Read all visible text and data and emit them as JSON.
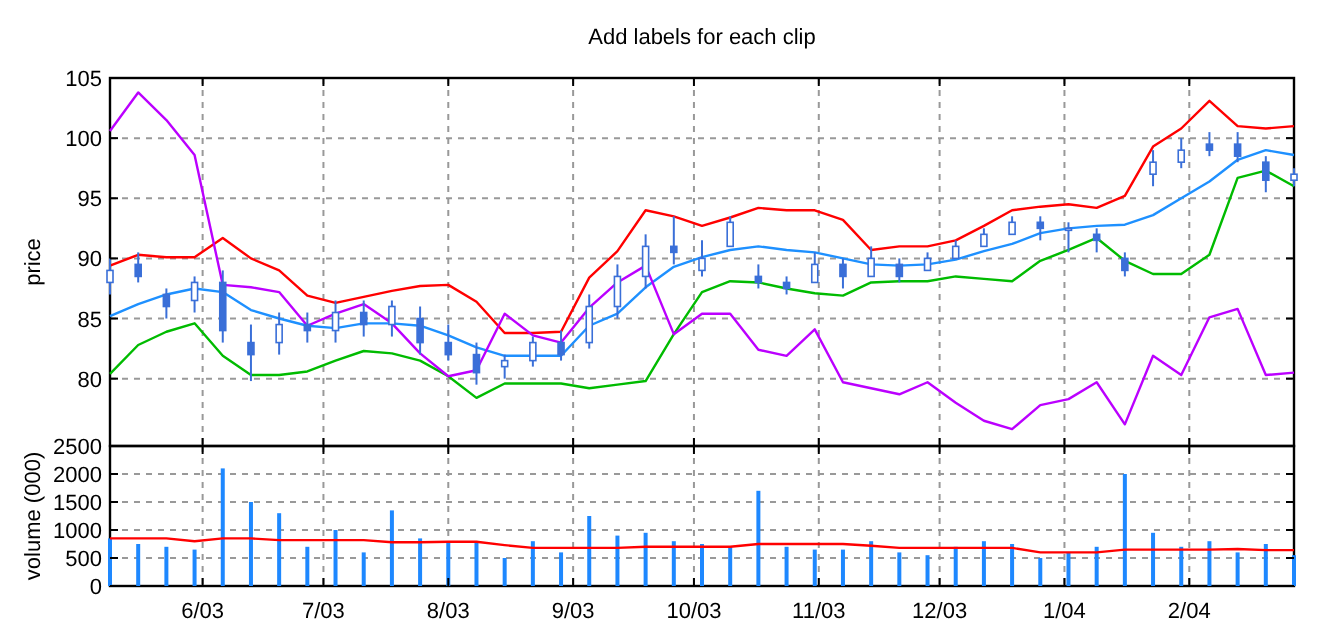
{
  "chart_data": [
    {
      "type": "candlestick",
      "title": "Add labels for each clip",
      "ylabel": "price",
      "color": "#3a6fd8",
      "x": [
        "2003-05-09",
        "2003-05-16",
        "2003-05-23",
        "2003-05-30",
        "2003-06-06",
        "2003-06-13",
        "2003-06-20",
        "2003-06-27",
        "2003-07-04",
        "2003-07-11",
        "2003-07-18",
        "2003-07-25",
        "2003-08-01",
        "2003-08-08",
        "2003-08-15",
        "2003-08-22",
        "2003-08-29",
        "2003-09-05",
        "2003-09-12",
        "2003-09-19",
        "2003-09-26",
        "2003-10-03",
        "2003-10-10",
        "2003-10-17",
        "2003-10-24",
        "2003-10-31",
        "2003-11-07",
        "2003-11-14",
        "2003-11-21",
        "2003-11-28",
        "2003-12-05",
        "2003-12-12",
        "2003-12-19",
        "2003-12-26",
        "2004-01-02",
        "2004-01-09",
        "2004-01-16",
        "2004-01-23",
        "2004-01-30",
        "2004-02-06",
        "2004-02-13",
        "2004-02-20",
        "2004-02-27"
      ],
      "ohlc": [
        [
          88,
          90,
          87,
          89
        ],
        [
          89.5,
          90.5,
          88,
          88.5
        ],
        [
          87,
          87.5,
          85,
          86
        ],
        [
          86.5,
          88.5,
          85.5,
          88
        ],
        [
          88,
          89,
          83,
          84
        ],
        [
          83,
          84.5,
          79.8,
          82
        ],
        [
          83,
          85.5,
          82,
          84.5
        ],
        [
          84.5,
          85.5,
          83,
          84
        ],
        [
          84,
          86.5,
          83,
          85.5
        ],
        [
          85.5,
          86.5,
          83.5,
          84.5
        ],
        [
          84.5,
          86.5,
          83.5,
          86
        ],
        [
          85,
          86,
          82,
          83
        ],
        [
          83,
          84.5,
          81.5,
          82
        ],
        [
          82,
          83,
          79.5,
          80.5
        ],
        [
          81,
          82,
          80,
          81.5
        ],
        [
          81.5,
          83.5,
          81,
          83
        ],
        [
          83,
          84,
          81.5,
          82
        ],
        [
          83,
          87,
          82.5,
          86
        ],
        [
          86,
          89.5,
          85,
          88.5
        ],
        [
          88.5,
          92,
          87.5,
          91
        ],
        [
          91,
          93.5,
          89.5,
          90.5
        ],
        [
          89,
          91.5,
          88.5,
          90
        ],
        [
          91,
          93.5,
          91,
          93
        ],
        [
          88.5,
          89.5,
          87.5,
          88
        ],
        [
          88,
          88.5,
          87,
          87.5
        ],
        [
          88,
          90.5,
          88,
          89.5
        ],
        [
          89.5,
          90,
          87.5,
          88.5
        ],
        [
          88.5,
          91,
          88.5,
          90
        ],
        [
          89.5,
          90,
          88,
          88.5
        ],
        [
          89,
          90.5,
          89,
          90
        ],
        [
          90,
          91.5,
          90,
          91
        ],
        [
          91,
          92.5,
          91,
          92
        ],
        [
          92,
          93.5,
          92,
          93
        ],
        [
          93,
          93.5,
          91.5,
          92.5
        ],
        [
          92.5,
          93,
          90.5,
          92.5
        ],
        [
          92,
          92.5,
          90.5,
          91.5
        ],
        [
          90,
          90.5,
          88.5,
          89
        ],
        [
          97,
          99,
          96,
          98
        ],
        [
          98,
          100,
          97.5,
          99
        ],
        [
          99.5,
          100.5,
          98.5,
          99
        ],
        [
          99.5,
          100.5,
          98,
          98.5
        ],
        [
          98,
          98.5,
          95.5,
          96.5
        ],
        [
          96.5,
          97.5,
          96,
          97
        ]
      ],
      "series": [
        {
          "type": "line",
          "color": "#ff0000",
          "values": [
            89.4,
            90.3,
            90.1,
            90.1,
            91.7,
            90.0,
            89.0,
            86.9,
            86.3,
            86.8,
            87.3,
            87.7,
            87.8,
            86.4,
            83.8,
            83.8,
            83.9,
            88.4,
            90.6,
            94.0,
            93.5,
            92.7,
            93.4,
            94.2,
            94.0,
            94.0,
            93.2,
            90.7,
            91.0,
            91.0,
            91.5,
            92.7,
            94.0,
            94.3,
            94.5,
            94.2,
            95.2,
            99.3,
            100.8,
            103.1,
            101.0,
            100.8,
            101.0
          ]
        },
        {
          "type": "line",
          "color": "#1e90ff",
          "values": [
            85.2,
            86.2,
            87.0,
            87.5,
            87.2,
            85.7,
            85.0,
            84.4,
            84.2,
            84.6,
            84.6,
            84.4,
            83.6,
            82.6,
            81.9,
            81.9,
            81.9,
            84.4,
            85.4,
            87.6,
            89.3,
            90.1,
            90.7,
            91.0,
            90.7,
            90.5,
            90.0,
            89.5,
            89.4,
            89.5,
            89.9,
            90.6,
            91.2,
            92.1,
            92.5,
            92.7,
            92.8,
            93.6,
            95.0,
            96.4,
            98.2,
            99.0,
            98.6
          ]
        },
        {
          "type": "line",
          "color": "#00bb00",
          "values": [
            80.4,
            82.8,
            83.9,
            84.6,
            81.9,
            80.3,
            80.3,
            80.6,
            81.5,
            82.3,
            82.1,
            81.5,
            80.2,
            78.4,
            79.6,
            79.6,
            79.6,
            79.2,
            79.5,
            79.8,
            83.7,
            87.2,
            88.1,
            88.0,
            87.5,
            87.1,
            86.9,
            88.0,
            88.1,
            88.1,
            88.5,
            88.3,
            88.1,
            89.8,
            90.7,
            91.7,
            89.8,
            88.7,
            88.7,
            90.3,
            96.7,
            97.3,
            96.0
          ]
        },
        {
          "type": "line",
          "color": "#bb00ff",
          "values": [
            100.6,
            103.8,
            101.5,
            98.6,
            87.8,
            87.6,
            87.2,
            84.4,
            85.4,
            86.2,
            84.6,
            82.1,
            80.2,
            80.7,
            85.4,
            83.6,
            83.0,
            85.9,
            88.0,
            89.4,
            83.7,
            85.4,
            85.4,
            82.4,
            81.9,
            84.1,
            79.7,
            79.2,
            78.7,
            79.7,
            78.0,
            76.5,
            75.8,
            77.8,
            78.3,
            79.7,
            76.2,
            81.9,
            80.3,
            85.1,
            85.8,
            80.3,
            80.5
          ]
        }
      ],
      "xlim": [
        "2003-05-09",
        "2004-02-27"
      ],
      "xticks": [
        {
          "value": "2003-06-01",
          "label": null
        },
        {
          "value": "2003-07-01",
          "label": null
        },
        {
          "value": "2003-08-01",
          "label": null
        },
        {
          "value": "2003-09-01",
          "label": null
        },
        {
          "value": "2003-10-01",
          "label": null
        },
        {
          "value": "2003-11-01",
          "label": null
        },
        {
          "value": "2003-12-01",
          "label": null
        },
        {
          "value": "2004-01-01",
          "label": null
        },
        {
          "value": "2004-02-01",
          "label": null
        }
      ],
      "ylim": [
        74.4,
        105
      ],
      "yticks": [
        80,
        85,
        90,
        95,
        100,
        105
      ],
      "grid": true,
      "tick_labels": "y"
    },
    {
      "type": "bar",
      "ylabel": "volume (000)",
      "x": [
        "2003-05-09",
        "2003-05-16",
        "2003-05-23",
        "2003-05-30",
        "2003-06-06",
        "2003-06-13",
        "2003-06-20",
        "2003-06-27",
        "2003-07-04",
        "2003-07-11",
        "2003-07-18",
        "2003-07-25",
        "2003-08-01",
        "2003-08-08",
        "2003-08-15",
        "2003-08-22",
        "2003-08-29",
        "2003-09-05",
        "2003-09-12",
        "2003-09-19",
        "2003-09-26",
        "2003-10-03",
        "2003-10-10",
        "2003-10-17",
        "2003-10-24",
        "2003-10-31",
        "2003-11-07",
        "2003-11-14",
        "2003-11-21",
        "2003-11-28",
        "2003-12-05",
        "2003-12-12",
        "2003-12-19",
        "2003-12-26",
        "2004-01-02",
        "2004-01-09",
        "2004-01-16",
        "2004-01-23",
        "2004-01-30",
        "2004-02-06",
        "2004-02-13",
        "2004-02-20",
        "2004-02-27"
      ],
      "series": [
        {
          "type": "bar",
          "color": "#1e88ff",
          "values": [
            850,
            750,
            700,
            650,
            2100,
            1500,
            1300,
            700,
            1000,
            600,
            1350,
            850,
            800,
            800,
            500,
            800,
            600,
            1250,
            900,
            950,
            800,
            750,
            700,
            1700,
            700,
            650,
            650,
            800,
            600,
            550,
            700,
            800,
            750,
            500,
            600,
            700,
            2000,
            950,
            700,
            800,
            600,
            750,
            550
          ]
        },
        {
          "type": "line",
          "color": "#ff0000",
          "values": [
            850,
            850,
            850,
            800,
            850,
            850,
            820,
            820,
            820,
            820,
            780,
            780,
            790,
            790,
            730,
            680,
            680,
            680,
            680,
            700,
            700,
            700,
            700,
            750,
            750,
            750,
            750,
            720,
            680,
            680,
            680,
            680,
            680,
            600,
            600,
            600,
            650,
            650,
            650,
            650,
            660,
            640,
            640
          ]
        }
      ],
      "xlim": [
        "2003-05-09",
        "2004-02-27"
      ],
      "xticks": [
        {
          "value": "2003-06-01",
          "label": "6/03"
        },
        {
          "value": "2003-07-01",
          "label": "7/03"
        },
        {
          "value": "2003-08-01",
          "label": "8/03"
        },
        {
          "value": "2003-09-01",
          "label": "9/03"
        },
        {
          "value": "2003-10-01",
          "label": "10/03"
        },
        {
          "value": "2003-11-01",
          "label": "11/03"
        },
        {
          "value": "2003-12-01",
          "label": "12/03"
        },
        {
          "value": "2004-01-01",
          "label": "1/04"
        },
        {
          "value": "2004-02-01",
          "label": "2/04"
        }
      ],
      "ylim": [
        0,
        2500
      ],
      "yticks": [
        0,
        500,
        1000,
        1500,
        2000,
        2500
      ],
      "grid": true
    }
  ]
}
